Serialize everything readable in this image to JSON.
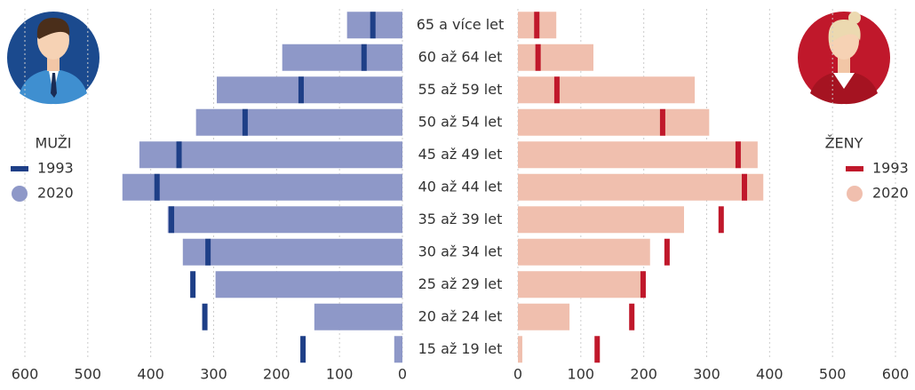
{
  "chart_data": {
    "type": "pyramid",
    "categories": [
      "65 a více let",
      "60 až 64 let",
      "55 až 59 let",
      "50 až 54 let",
      "45 až 49 let",
      "40 až 44 let",
      "35 až 39 let",
      "30 až 34 let",
      "25 až 29 let",
      "20 až 24 let",
      "15 až 19 let"
    ],
    "xlim": [
      0,
      600
    ],
    "xticks": [
      0,
      100,
      200,
      300,
      400,
      500,
      600
    ],
    "grid": true,
    "groups": [
      {
        "label": "MUŽI",
        "side": "left",
        "series": [
          {
            "name": "1993",
            "style": "marker",
            "color": "#1e3f87",
            "values": [
              47,
              61,
              161,
              250,
              355,
              390,
              367,
              309,
              333,
              314,
              158
            ]
          },
          {
            "name": "2020",
            "style": "bar",
            "color": "#8e98c8",
            "values": [
              88,
              191,
              295,
              328,
              418,
              445,
              373,
              349,
              297,
              140,
              13
            ]
          }
        ]
      },
      {
        "label": "ŽENY",
        "side": "right",
        "series": [
          {
            "name": "1993",
            "style": "marker",
            "color": "#c0182b",
            "values": [
              30,
              32,
              62,
              230,
              350,
              360,
              323,
              237,
              199,
              181,
              126
            ]
          },
          {
            "name": "2020",
            "style": "bar",
            "color": "#f0bfae",
            "values": [
              61,
              120,
              281,
              304,
              381,
              390,
              264,
              210,
              196,
              82,
              7
            ]
          }
        ]
      }
    ]
  }
}
